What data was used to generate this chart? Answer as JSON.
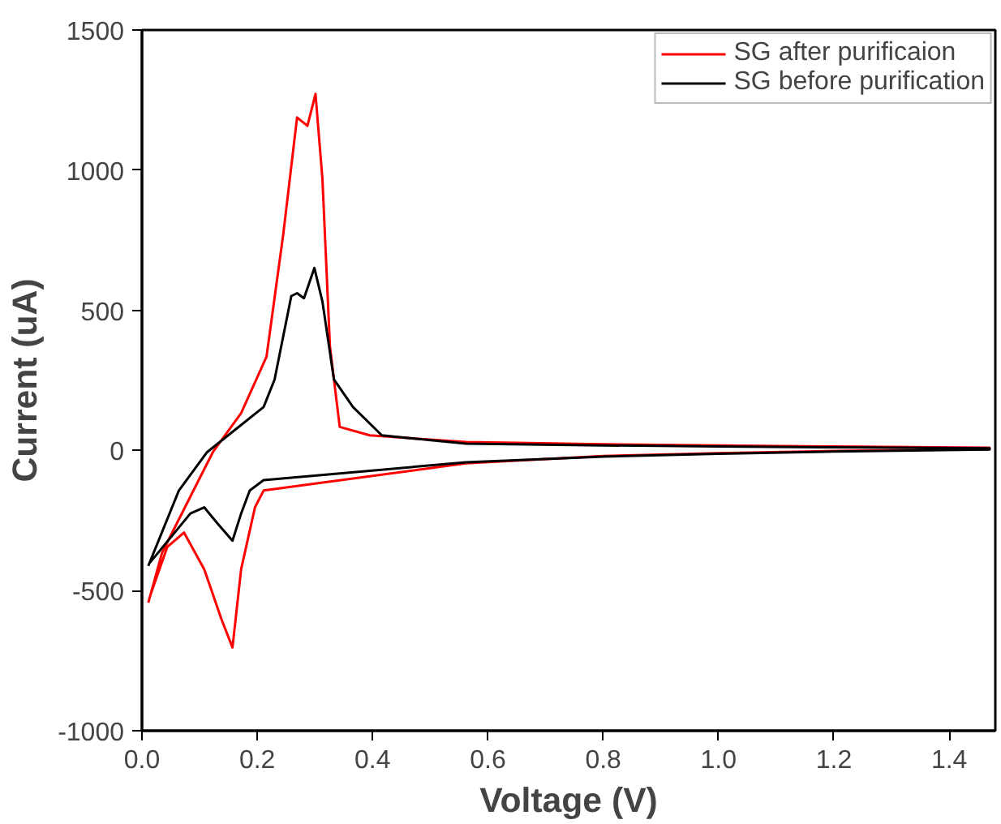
{
  "chart_data": {
    "type": "line",
    "xlabel": "Voltage (V)",
    "ylabel": "Current (uA)",
    "xlim": [
      0,
      1.48
    ],
    "ylim": [
      -1000,
      1500
    ],
    "xticks": [
      {
        "value": 0,
        "label": "0.0"
      },
      {
        "value": 0.2,
        "label": "0.2"
      },
      {
        "value": 0.4,
        "label": "0.4"
      },
      {
        "value": 0.6,
        "label": "0.6"
      },
      {
        "value": 0.8,
        "label": "0.8"
      },
      {
        "value": 1.0,
        "label": "1.0"
      },
      {
        "value": 1.2,
        "label": "1.2"
      },
      {
        "value": 1.4,
        "label": "1.4"
      }
    ],
    "yticks": [
      -1000,
      -500,
      0,
      500,
      1000,
      1500
    ],
    "grid": false,
    "legend": "top right",
    "series": [
      {
        "name": "SG after purificaion",
        "color": "#ff0000",
        "x": [
          0.011,
          0.035,
          0.123,
          0.172,
          0.216,
          0.245,
          0.269,
          0.287,
          0.301,
          0.313,
          0.326,
          0.343,
          0.395,
          0.562,
          0.8,
          1.0,
          1.2,
          1.47,
          1.47,
          1.2,
          1.0,
          0.8,
          0.562,
          0.211,
          0.196,
          0.172,
          0.157,
          0.138,
          0.108,
          0.073,
          0.044,
          0.014
        ],
        "values": [
          -543,
          -364,
          -6,
          133,
          334,
          770,
          1188,
          1158,
          1272,
          969,
          372,
          84,
          54,
          30,
          22,
          18,
          14,
          10,
          5,
          -2,
          -10,
          -20,
          -46,
          -143,
          -203,
          -424,
          -703,
          -603,
          -424,
          -293,
          -344,
          -520
        ]
      },
      {
        "name": "SG before purification",
        "color": "#000000",
        "x": [
          0.011,
          0.064,
          0.113,
          0.211,
          0.23,
          0.259,
          0.269,
          0.281,
          0.299,
          0.313,
          0.333,
          0.366,
          0.416,
          0.562,
          0.8,
          1.0,
          1.2,
          1.47,
          1.47,
          1.2,
          1.0,
          0.8,
          0.562,
          0.211,
          0.187,
          0.172,
          0.157,
          0.132,
          0.108,
          0.084,
          0.014
        ],
        "values": [
          -412,
          -143,
          -6,
          155,
          253,
          551,
          561,
          543,
          651,
          531,
          253,
          155,
          54,
          24,
          18,
          14,
          11,
          8,
          3,
          -4,
          -12,
          -22,
          -42,
          -106,
          -143,
          -225,
          -322,
          -263,
          -203,
          -225,
          -400
        ]
      }
    ]
  }
}
